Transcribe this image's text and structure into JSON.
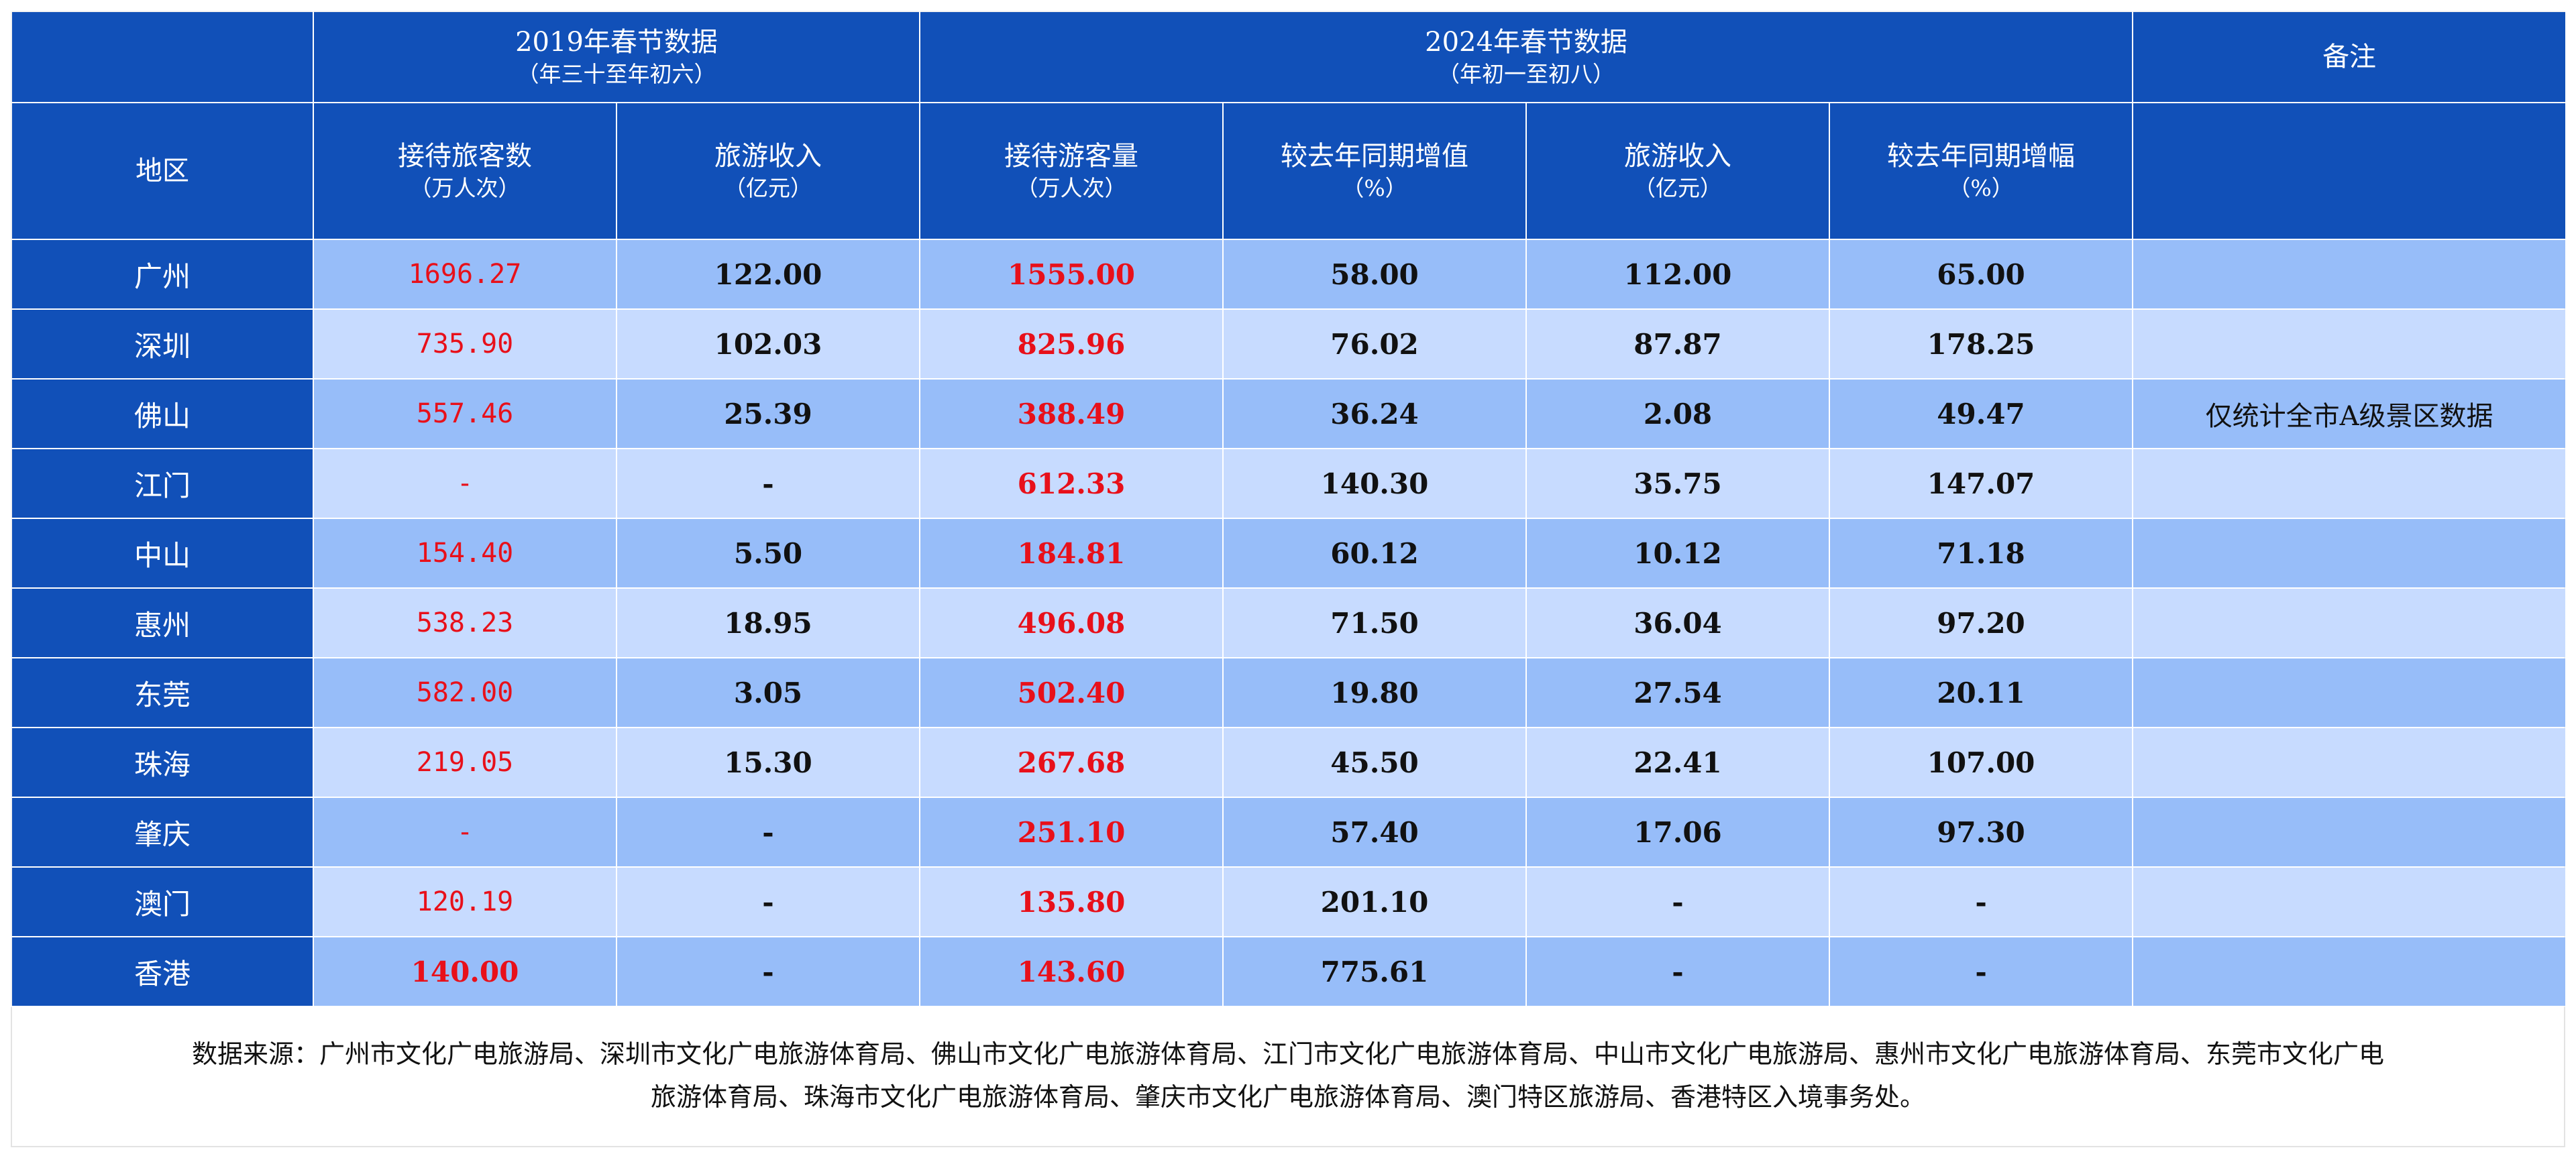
{
  "header": {
    "group_2019_title": "2019年春节数据",
    "group_2019_sub": "（年三十至年初六）",
    "group_2024_title": "2024年春节数据",
    "group_2024_sub": "（年初一至初八）",
    "remarks": "备注",
    "region": "地区",
    "columns": [
      {
        "title": "接待旅客数",
        "unit": "（万人次）"
      },
      {
        "title": "旅游收入",
        "unit": "（亿元）"
      },
      {
        "title": "接待游客量",
        "unit": "（万人次）"
      },
      {
        "title": "较去年同期增值",
        "unit": "（%）"
      },
      {
        "title": "旅游收入",
        "unit": "（亿元）"
      },
      {
        "title": "较去年同期增幅",
        "unit": "（%）"
      }
    ]
  },
  "rows": [
    {
      "region": "广州",
      "v": [
        "1696.27",
        "122.00",
        "1555.00",
        "58.00",
        "112.00",
        "65.00"
      ],
      "note": ""
    },
    {
      "region": "深圳",
      "v": [
        "735.90",
        "102.03",
        "825.96",
        "76.02",
        "87.87",
        "178.25"
      ],
      "note": ""
    },
    {
      "region": "佛山",
      "v": [
        "557.46",
        "25.39",
        "388.49",
        "36.24",
        "2.08",
        "49.47"
      ],
      "note": "仅统计全市A级景区数据"
    },
    {
      "region": "江门",
      "v": [
        "-",
        "-",
        "612.33",
        "140.30",
        "35.75",
        "147.07"
      ],
      "note": ""
    },
    {
      "region": "中山",
      "v": [
        "154.40",
        "5.50",
        "184.81",
        "60.12",
        "10.12",
        "71.18"
      ],
      "note": ""
    },
    {
      "region": "惠州",
      "v": [
        "538.23",
        "18.95",
        "496.08",
        "71.50",
        "36.04",
        "97.20"
      ],
      "note": ""
    },
    {
      "region": "东莞",
      "v": [
        "582.00",
        "3.05",
        "502.40",
        "19.80",
        "27.54",
        "20.11"
      ],
      "note": ""
    },
    {
      "region": "珠海",
      "v": [
        "219.05",
        "15.30",
        "267.68",
        "45.50",
        "22.41",
        "107.00"
      ],
      "note": ""
    },
    {
      "region": "肇庆",
      "v": [
        "-",
        "-",
        "251.10",
        "57.40",
        "17.06",
        "97.30"
      ],
      "note": ""
    },
    {
      "region": "澳门",
      "v": [
        "120.19",
        "-",
        "135.80",
        "201.10",
        "-",
        "-"
      ],
      "note": ""
    },
    {
      "region": "香港",
      "v": [
        "140.00",
        "-",
        "143.60",
        "775.61",
        "-",
        "-"
      ],
      "note": ""
    }
  ],
  "source": {
    "line1": "数据来源：广州市文化广电旅游局、深圳市文化广电旅游体育局、佛山市文化广电旅游体育局、江门市文化广电旅游体育局、中山市文化广电旅游局、惠州市文化广电旅游体育局、东莞市文化广电",
    "line2": "旅游体育局、珠海市文化广电旅游体育局、肇庆市文化广电旅游体育局、澳门特区旅游局、香港特区入境事务处。"
  },
  "colors": {
    "header_blue": "#1150b8",
    "row_odd": "#97bdf9",
    "row_even": "#c7dbff",
    "highlight_red": "#e8101a"
  }
}
